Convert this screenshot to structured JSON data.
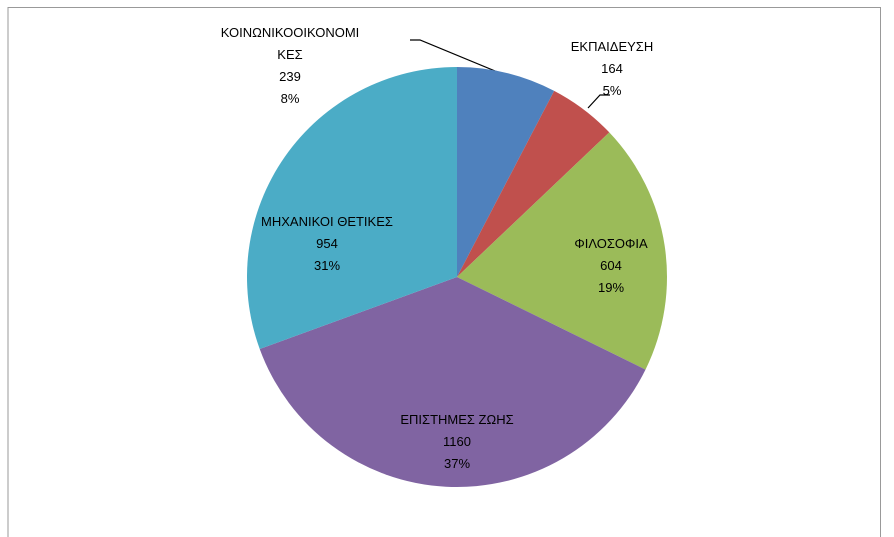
{
  "chart_data": {
    "type": "pie",
    "categories": [
      "ΚΟΙΝΩΝΙΚΟΟΙΚΟΝΟΜΙΚΕΣ",
      "ΕΚΠΑΙΔΕΥΣΗ",
      "ΦΙΛΟΣΟΦΙΑ",
      "ΕΠΙΣΤΗΜΕΣ ΖΩΗΣ",
      "ΜΗΧΑΝΙΚΟΙ ΘΕΤΙΚΕΣ"
    ],
    "values": [
      239,
      164,
      604,
      1160,
      954
    ],
    "percent_labels": [
      "8%",
      "5%",
      "19%",
      "37%",
      "31%"
    ],
    "colors": [
      "#4f81bd",
      "#c0504d",
      "#9bbb59",
      "#8064a2",
      "#4bacc6"
    ]
  }
}
